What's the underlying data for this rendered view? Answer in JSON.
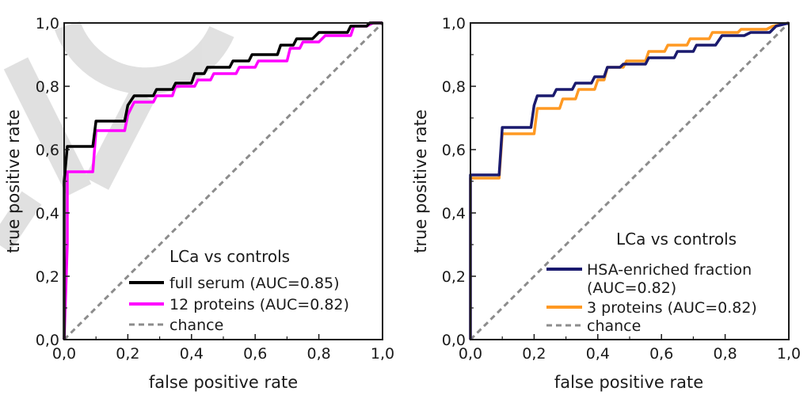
{
  "chart_data": [
    {
      "type": "line",
      "xlabel": "false positive rate",
      "ylabel": "true positive rate",
      "xlim": [
        0,
        1
      ],
      "ylim": [
        0,
        1
      ],
      "x_tick_labels": [
        "0,0",
        "0,2",
        "0,4",
        "0,6",
        "0,8",
        "1,0"
      ],
      "y_tick_labels": [
        "0,0",
        "0,2",
        "0,4",
        "0,6",
        "0,8",
        "1,0"
      ],
      "legend_position": "bottom-right",
      "legend_title": "LCa vs controls",
      "series": [
        {
          "name": "full serum (AUC=0.85)",
          "color": "#000000",
          "points": [
            [
              0,
              0
            ],
            [
              0,
              0.5
            ],
            [
              0.01,
              0.61
            ],
            [
              0.09,
              0.61
            ],
            [
              0.1,
              0.69
            ],
            [
              0.19,
              0.69
            ],
            [
              0.2,
              0.74
            ],
            [
              0.22,
              0.77
            ],
            [
              0.28,
              0.77
            ],
            [
              0.29,
              0.79
            ],
            [
              0.34,
              0.79
            ],
            [
              0.35,
              0.81
            ],
            [
              0.4,
              0.81
            ],
            [
              0.41,
              0.84
            ],
            [
              0.44,
              0.84
            ],
            [
              0.45,
              0.86
            ],
            [
              0.52,
              0.86
            ],
            [
              0.53,
              0.88
            ],
            [
              0.58,
              0.88
            ],
            [
              0.59,
              0.9
            ],
            [
              0.67,
              0.9
            ],
            [
              0.68,
              0.93
            ],
            [
              0.72,
              0.93
            ],
            [
              0.73,
              0.95
            ],
            [
              0.78,
              0.95
            ],
            [
              0.8,
              0.97
            ],
            [
              0.89,
              0.97
            ],
            [
              0.9,
              0.99
            ],
            [
              0.95,
              0.99
            ],
            [
              0.96,
              1
            ],
            [
              1,
              1
            ]
          ]
        },
        {
          "name": "12 proteins (AUC=0.82)",
          "color": "#ff00ff",
          "points": [
            [
              0,
              0
            ],
            [
              0.01,
              0.3
            ],
            [
              0.01,
              0.53
            ],
            [
              0.09,
              0.53
            ],
            [
              0.1,
              0.66
            ],
            [
              0.19,
              0.66
            ],
            [
              0.2,
              0.71
            ],
            [
              0.22,
              0.75
            ],
            [
              0.28,
              0.75
            ],
            [
              0.29,
              0.77
            ],
            [
              0.34,
              0.77
            ],
            [
              0.35,
              0.8
            ],
            [
              0.41,
              0.8
            ],
            [
              0.42,
              0.82
            ],
            [
              0.46,
              0.82
            ],
            [
              0.47,
              0.84
            ],
            [
              0.54,
              0.84
            ],
            [
              0.55,
              0.86
            ],
            [
              0.6,
              0.86
            ],
            [
              0.61,
              0.88
            ],
            [
              0.7,
              0.88
            ],
            [
              0.71,
              0.92
            ],
            [
              0.74,
              0.92
            ],
            [
              0.75,
              0.94
            ],
            [
              0.8,
              0.94
            ],
            [
              0.82,
              0.96
            ],
            [
              0.9,
              0.96
            ],
            [
              0.91,
              0.99
            ],
            [
              0.95,
              0.99
            ],
            [
              0.97,
              1
            ],
            [
              1,
              1
            ]
          ]
        },
        {
          "name": "chance",
          "color": "#8c8c8c",
          "dashed": true,
          "points": [
            [
              0,
              0
            ],
            [
              1,
              1
            ]
          ]
        }
      ]
    },
    {
      "type": "line",
      "xlabel": "false positive rate",
      "ylabel": "true positive rate",
      "xlim": [
        0,
        1
      ],
      "ylim": [
        0,
        1
      ],
      "x_tick_labels": [
        "0,0",
        "0,2",
        "0,4",
        "0,6",
        "0,8",
        "1,0"
      ],
      "y_tick_labels": [
        "0,0",
        "0,2",
        "0,4",
        "0,6",
        "0,8",
        "1,0"
      ],
      "legend_position": "bottom-right",
      "legend_title": "LCa vs controls",
      "series": [
        {
          "name": "HSA-enriched fraction (AUC=0.82)",
          "legend_lines": [
            "HSA-enriched fraction",
            "(AUC=0.82)"
          ],
          "color": "#1a1a6e",
          "points": [
            [
              0,
              0
            ],
            [
              0,
              0.52
            ],
            [
              0.09,
              0.52
            ],
            [
              0.1,
              0.67
            ],
            [
              0.19,
              0.67
            ],
            [
              0.2,
              0.74
            ],
            [
              0.21,
              0.77
            ],
            [
              0.26,
              0.77
            ],
            [
              0.27,
              0.79
            ],
            [
              0.32,
              0.79
            ],
            [
              0.33,
              0.81
            ],
            [
              0.38,
              0.81
            ],
            [
              0.39,
              0.83
            ],
            [
              0.42,
              0.83
            ],
            [
              0.43,
              0.86
            ],
            [
              0.47,
              0.86
            ],
            [
              0.48,
              0.87
            ],
            [
              0.55,
              0.87
            ],
            [
              0.56,
              0.89
            ],
            [
              0.64,
              0.89
            ],
            [
              0.65,
              0.91
            ],
            [
              0.7,
              0.91
            ],
            [
              0.71,
              0.93
            ],
            [
              0.77,
              0.93
            ],
            [
              0.79,
              0.96
            ],
            [
              0.86,
              0.96
            ],
            [
              0.88,
              0.97
            ],
            [
              0.94,
              0.97
            ],
            [
              0.96,
              0.99
            ],
            [
              1,
              1
            ]
          ]
        },
        {
          "name": "3 proteins (AUC=0.82)",
          "legend_lines": [
            "3 proteins (AUC=0.82)"
          ],
          "color": "#ff9922",
          "points": [
            [
              0,
              0
            ],
            [
              0,
              0.51
            ],
            [
              0.09,
              0.51
            ],
            [
              0.1,
              0.65
            ],
            [
              0.2,
              0.65
            ],
            [
              0.21,
              0.73
            ],
            [
              0.28,
              0.73
            ],
            [
              0.29,
              0.76
            ],
            [
              0.33,
              0.76
            ],
            [
              0.34,
              0.79
            ],
            [
              0.39,
              0.79
            ],
            [
              0.4,
              0.82
            ],
            [
              0.42,
              0.82
            ],
            [
              0.43,
              0.86
            ],
            [
              0.48,
              0.86
            ],
            [
              0.49,
              0.88
            ],
            [
              0.55,
              0.88
            ],
            [
              0.56,
              0.91
            ],
            [
              0.61,
              0.91
            ],
            [
              0.62,
              0.93
            ],
            [
              0.68,
              0.93
            ],
            [
              0.69,
              0.95
            ],
            [
              0.75,
              0.95
            ],
            [
              0.76,
              0.97
            ],
            [
              0.84,
              0.97
            ],
            [
              0.85,
              0.98
            ],
            [
              0.93,
              0.98
            ],
            [
              0.95,
              0.99
            ],
            [
              1,
              1
            ]
          ]
        },
        {
          "name": "chance",
          "legend_lines": [
            "chance"
          ],
          "color": "#8c8c8c",
          "dashed": true,
          "points": [
            [
              0,
              0
            ],
            [
              1,
              1
            ]
          ]
        }
      ]
    }
  ]
}
